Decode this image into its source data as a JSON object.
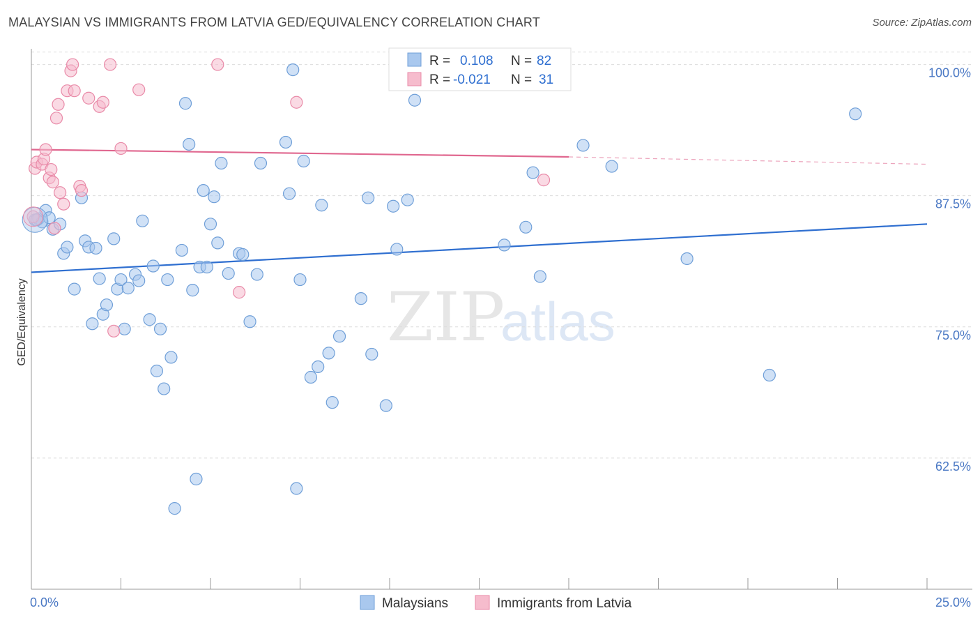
{
  "title": "MALAYSIAN VS IMMIGRANTS FROM LATVIA GED/EQUIVALENCY CORRELATION CHART",
  "source": "Source: ZipAtlas.com",
  "watermark": {
    "zip": "ZIP",
    "atlas": "atlas"
  },
  "colors": {
    "blue_fill": "#a9c8ee",
    "blue_stroke": "#6f9fd8",
    "blue_line": "#2f6fd0",
    "pink_fill": "#f6bccd",
    "pink_stroke": "#e98aa8",
    "pink_line": "#e0678f",
    "axis_text": "#4a78c4",
    "grid": "#dcdcdc"
  },
  "legend_top": {
    "rows": [
      {
        "r_label": "R =",
        "r_value": "0.108",
        "n_label": "N =",
        "n_value": "82"
      },
      {
        "r_label": "R =",
        "r_value": "-0.021",
        "n_label": "N =",
        "n_value": "31"
      }
    ]
  },
  "legend_bottom": [
    "Malaysians",
    "Immigrants from Latvia"
  ],
  "chart_data": {
    "type": "scatter",
    "title": "MALAYSIAN VS IMMIGRANTS FROM LATVIA GED/EQUIVALENCY CORRELATION CHART",
    "xlabel": "",
    "ylabel": "GED/Equivalency",
    "xlim": [
      0,
      25
    ],
    "ylim": [
      50,
      101.5
    ],
    "x_tick_labels": [
      "0.0%",
      "25.0%"
    ],
    "y_ticks": [
      62.5,
      75.0,
      87.5,
      100.0
    ],
    "y_tick_labels": [
      "62.5%",
      "75.0%",
      "87.5%",
      "100.0%"
    ],
    "grid": true,
    "series": [
      {
        "name": "Malaysians",
        "r": 0.108,
        "n": 82,
        "trend": {
          "x": [
            0,
            25
          ],
          "y": [
            80.2,
            84.8
          ]
        },
        "points": [
          [
            0.1,
            85.2
          ],
          [
            0.2,
            85.3
          ],
          [
            0.3,
            85.0
          ],
          [
            0.4,
            86.1
          ],
          [
            0.5,
            85.4
          ],
          [
            0.6,
            84.3
          ],
          [
            0.8,
            84.8
          ],
          [
            0.9,
            82.0
          ],
          [
            1.0,
            82.6
          ],
          [
            1.2,
            78.6
          ],
          [
            1.4,
            87.3
          ],
          [
            1.5,
            83.2
          ],
          [
            1.6,
            82.6
          ],
          [
            1.7,
            75.3
          ],
          [
            1.8,
            82.5
          ],
          [
            1.9,
            79.6
          ],
          [
            2.0,
            76.2
          ],
          [
            2.1,
            77.1
          ],
          [
            2.3,
            83.4
          ],
          [
            2.4,
            78.6
          ],
          [
            2.5,
            79.5
          ],
          [
            2.6,
            74.8
          ],
          [
            2.7,
            78.7
          ],
          [
            2.9,
            80.0
          ],
          [
            3.0,
            79.4
          ],
          [
            3.1,
            85.1
          ],
          [
            3.3,
            75.7
          ],
          [
            3.4,
            80.8
          ],
          [
            3.5,
            70.8
          ],
          [
            3.6,
            74.8
          ],
          [
            3.7,
            69.1
          ],
          [
            3.8,
            79.5
          ],
          [
            3.9,
            72.1
          ],
          [
            4.0,
            57.7
          ],
          [
            4.2,
            82.3
          ],
          [
            4.3,
            96.3
          ],
          [
            4.4,
            92.4
          ],
          [
            4.5,
            78.5
          ],
          [
            4.6,
            60.5
          ],
          [
            4.7,
            80.7
          ],
          [
            4.8,
            88.0
          ],
          [
            4.9,
            80.7
          ],
          [
            5.0,
            84.8
          ],
          [
            5.1,
            87.4
          ],
          [
            5.2,
            83.0
          ],
          [
            5.3,
            90.6
          ],
          [
            5.5,
            80.1
          ],
          [
            5.8,
            82.0
          ],
          [
            5.9,
            81.9
          ],
          [
            6.1,
            75.5
          ],
          [
            6.3,
            80.0
          ],
          [
            6.4,
            90.6
          ],
          [
            7.1,
            92.6
          ],
          [
            7.2,
            87.7
          ],
          [
            7.3,
            99.5
          ],
          [
            7.4,
            59.6
          ],
          [
            7.5,
            79.5
          ],
          [
            7.6,
            90.8
          ],
          [
            7.8,
            70.2
          ],
          [
            8.0,
            71.2
          ],
          [
            8.1,
            86.6
          ],
          [
            8.3,
            72.5
          ],
          [
            8.4,
            67.8
          ],
          [
            8.6,
            74.1
          ],
          [
            9.2,
            77.7
          ],
          [
            9.4,
            87.3
          ],
          [
            9.5,
            72.4
          ],
          [
            9.9,
            67.5
          ],
          [
            10.1,
            86.5
          ],
          [
            10.2,
            82.4
          ],
          [
            10.5,
            87.1
          ],
          [
            10.7,
            96.6
          ],
          [
            13.2,
            82.8
          ],
          [
            13.8,
            84.5
          ],
          [
            14.0,
            89.7
          ],
          [
            14.2,
            79.8
          ],
          [
            15.4,
            92.3
          ],
          [
            16.2,
            90.3
          ],
          [
            18.3,
            81.5
          ],
          [
            20.6,
            70.4
          ],
          [
            23.0,
            95.3
          ],
          [
            0.15,
            85.2
          ]
        ]
      },
      {
        "name": "Immigrants from Latvia",
        "r": -0.021,
        "n": 31,
        "trend": {
          "x": [
            0,
            15
          ],
          "y": [
            91.9,
            91.2
          ]
        },
        "trend_dashed": {
          "x": [
            15,
            25
          ],
          "y": [
            91.2,
            90.5
          ]
        },
        "points": [
          [
            0.05,
            85.5
          ],
          [
            0.1,
            90.1
          ],
          [
            0.15,
            90.7
          ],
          [
            0.3,
            90.5
          ],
          [
            0.35,
            91.0
          ],
          [
            0.4,
            91.9
          ],
          [
            0.5,
            89.2
          ],
          [
            0.55,
            90.0
          ],
          [
            0.6,
            88.8
          ],
          [
            0.65,
            84.4
          ],
          [
            0.7,
            94.9
          ],
          [
            0.75,
            96.2
          ],
          [
            0.8,
            87.8
          ],
          [
            0.9,
            86.7
          ],
          [
            1.0,
            97.5
          ],
          [
            1.1,
            99.4
          ],
          [
            1.15,
            100.0
          ],
          [
            1.2,
            97.5
          ],
          [
            1.35,
            88.4
          ],
          [
            1.4,
            88.0
          ],
          [
            1.6,
            96.8
          ],
          [
            1.9,
            96.0
          ],
          [
            2.0,
            96.4
          ],
          [
            2.2,
            100.0
          ],
          [
            2.3,
            74.6
          ],
          [
            2.5,
            92.0
          ],
          [
            3.0,
            97.6
          ],
          [
            5.2,
            100.0
          ],
          [
            5.8,
            78.3
          ],
          [
            7.4,
            96.4
          ],
          [
            14.3,
            89.0
          ]
        ]
      }
    ]
  }
}
